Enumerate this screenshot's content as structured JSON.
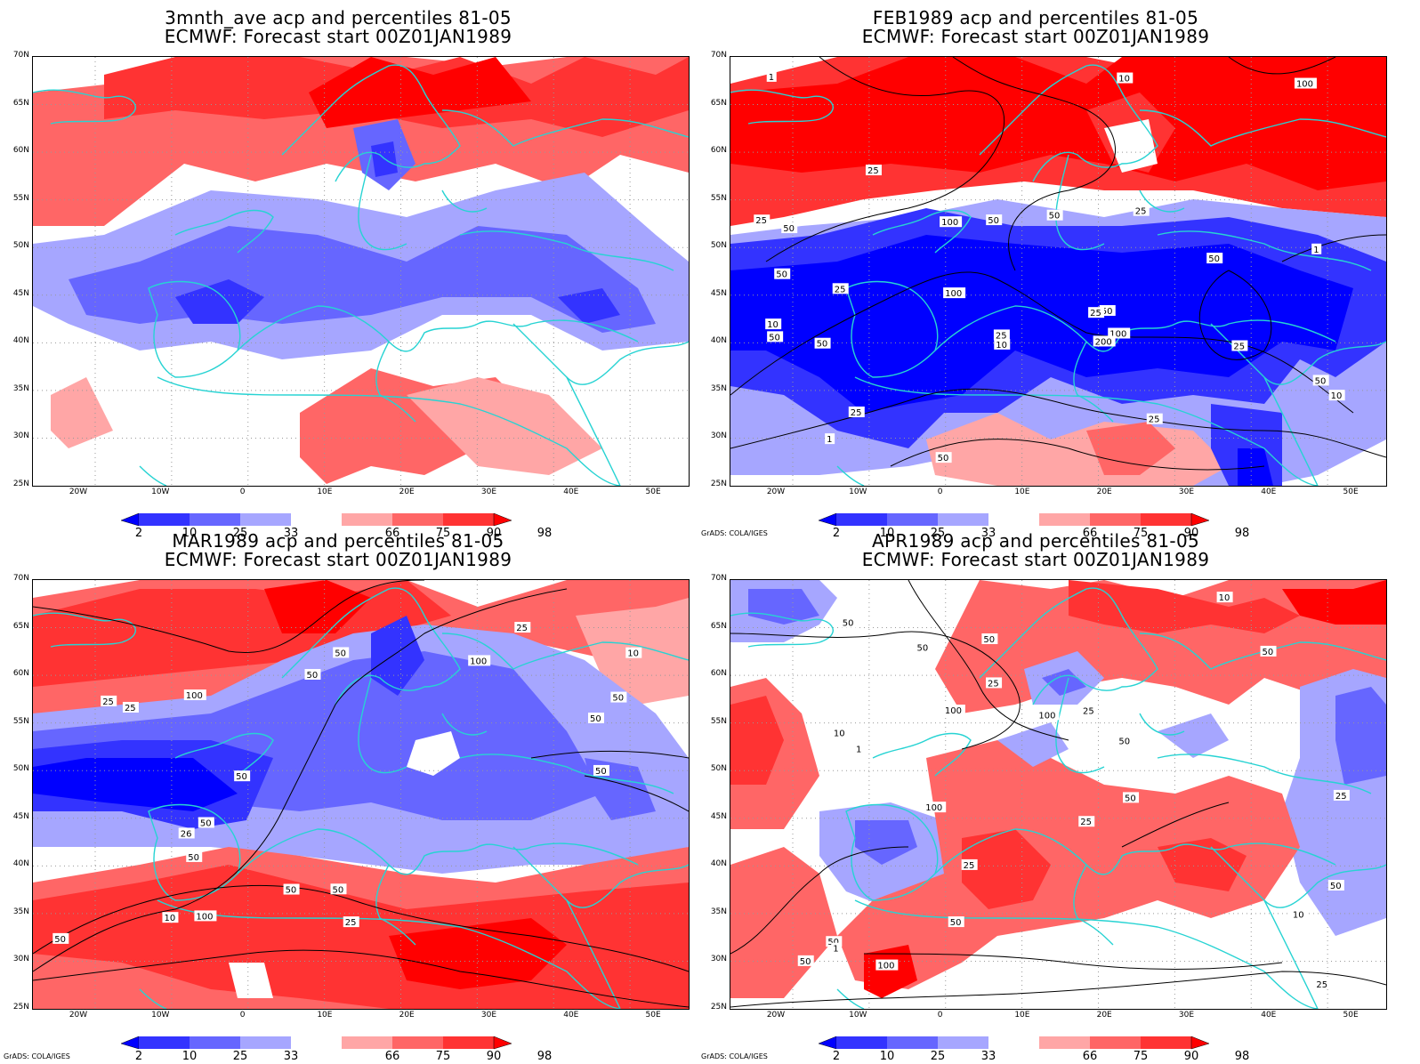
{
  "panels": [
    {
      "id": "p1",
      "title_line1": "3mnth_ave acp and percentiles 81-05",
      "title_line2": "ECMWF: Forecast start 00Z01JAN1989",
      "credit": ""
    },
    {
      "id": "p2",
      "title_line1": "FEB1989 acp and percentiles 81-05",
      "title_line2": "ECMWF: Forecast start 00Z01JAN1989",
      "credit": "GrADS: COLA/IGES"
    },
    {
      "id": "p3",
      "title_line1": "MAR1989 acp and percentiles 81-05",
      "title_line2": "ECMWF: Forecast start 00Z01JAN1989",
      "credit": "GrADS: COLA/IGES"
    },
    {
      "id": "p4",
      "title_line1": "APR1989 acp and percentiles 81-05",
      "title_line2": "ECMWF: Forecast start 00Z01JAN1989",
      "credit": "GrADS: COLA/IGES"
    }
  ],
  "y_axis_labels": [
    "70N",
    "65N",
    "60N",
    "55N",
    "50N",
    "45N",
    "40N",
    "35N",
    "30N",
    "25N"
  ],
  "x_axis_labels": [
    "20W",
    "10W",
    "0",
    "10E",
    "20E",
    "30E",
    "40E",
    "50E"
  ],
  "colorbar": {
    "labels": [
      "2",
      "10",
      "25",
      "33",
      "66",
      "75",
      "90",
      "98"
    ],
    "colors": [
      "#0000ff",
      "#3333ff",
      "#6666ff",
      "#a6a6ff",
      "#ffffff",
      "#ffa6a6",
      "#ff6666",
      "#ff3333",
      "#ff0000"
    ]
  },
  "contour_labels": {
    "p2": [
      "100",
      "50",
      "100",
      "200",
      "100",
      "50",
      "50",
      "50",
      "100",
      "50",
      "25",
      "25",
      "50",
      "25",
      "25",
      "50",
      "25",
      "50",
      "50",
      "25",
      "10",
      "25",
      "10",
      "1",
      "1",
      "10",
      "25",
      "50",
      "25",
      "10",
      "1"
    ],
    "p3": [
      "50",
      "100",
      "100",
      "50",
      "100",
      "50",
      "50",
      "50",
      "50",
      "50",
      "50",
      "50",
      "25",
      "50",
      "26",
      "10",
      "25",
      "25",
      "50",
      "10",
      "25"
    ],
    "p4": [
      "50",
      "50",
      "100",
      "100",
      "50",
      "50",
      "50",
      "25",
      "100",
      "50",
      "100",
      "50",
      "50",
      "25",
      "50",
      "25",
      "10",
      "25",
      "10",
      "1",
      "1",
      "50",
      "25",
      "25",
      "10"
    ]
  },
  "colors": {
    "coastline": "#27d3d3",
    "contour": "#000000",
    "grid": "#999999"
  }
}
